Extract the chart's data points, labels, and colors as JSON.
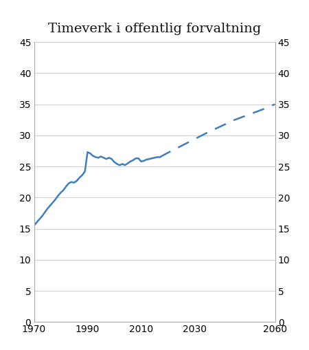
{
  "title": "Timeverk i offentlig forvaltning",
  "title_fontsize": 14,
  "line_color": "#3c7ebf",
  "line_width": 1.8,
  "ylim": [
    0,
    45
  ],
  "yticks": [
    0,
    5,
    10,
    15,
    20,
    25,
    30,
    35,
    40,
    45
  ],
  "xlim": [
    1970,
    2060
  ],
  "xticks": [
    1970,
    1990,
    2010,
    2030,
    2060
  ],
  "solid_data": {
    "years": [
      1970,
      1971,
      1972,
      1973,
      1974,
      1975,
      1976,
      1977,
      1978,
      1979,
      1980,
      1981,
      1982,
      1983,
      1984,
      1985,
      1986,
      1987,
      1988,
      1989,
      1990,
      1991,
      1992,
      1993,
      1994,
      1995,
      1996,
      1997,
      1998,
      1999,
      2000,
      2001,
      2002,
      2003,
      2004,
      2005,
      2006,
      2007,
      2008,
      2009,
      2010,
      2011,
      2012,
      2013,
      2014,
      2015,
      2016,
      2017
    ],
    "values": [
      15.5,
      16.0,
      16.5,
      17.0,
      17.6,
      18.2,
      18.7,
      19.2,
      19.7,
      20.3,
      20.8,
      21.2,
      21.8,
      22.3,
      22.5,
      22.4,
      22.7,
      23.2,
      23.6,
      24.2,
      27.3,
      27.1,
      26.7,
      26.5,
      26.4,
      26.6,
      26.4,
      26.2,
      26.4,
      26.2,
      25.7,
      25.4,
      25.2,
      25.4,
      25.2,
      25.5,
      25.8,
      26.0,
      26.3,
      26.3,
      25.8,
      25.9,
      26.1,
      26.2,
      26.3,
      26.4,
      26.5,
      26.5
    ]
  },
  "dashed_data": {
    "years": [
      2017,
      2020,
      2025,
      2030,
      2035,
      2040,
      2045,
      2050,
      2055,
      2060
    ],
    "values": [
      26.5,
      27.2,
      28.3,
      29.4,
      30.5,
      31.5,
      32.5,
      33.3,
      34.1,
      35.0
    ]
  },
  "background_color": "#ffffff",
  "grid_color": "#c8c8c8",
  "spine_color": "#aaaaaa",
  "tick_fontsize": 10
}
